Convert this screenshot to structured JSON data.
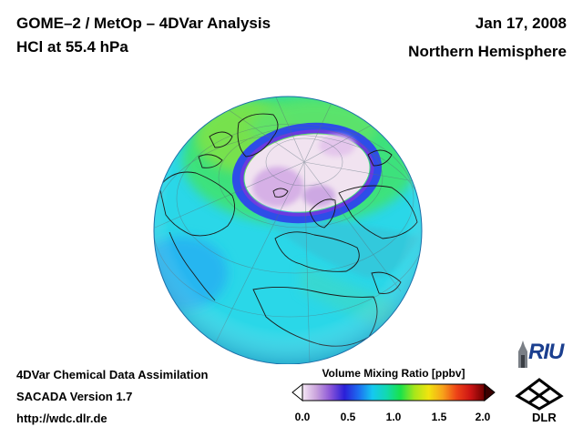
{
  "header": {
    "title": "GOME–2 / MetOp – 4DVar Analysis",
    "subtitle": "HCl at 55.4 hPa",
    "date": "Jan 17, 2008",
    "region": "Northern Hemisphere"
  },
  "footer": {
    "line1": "4DVar Chemical Data Assimilation",
    "line2": "SACADA Version 1.7",
    "line3": "http://wdc.dlr.de"
  },
  "colorbar": {
    "title": "Volume Mixing Ratio [ppbv]",
    "ticks": [
      "0.0",
      "0.5",
      "1.0",
      "1.5",
      "2.0"
    ],
    "range": [
      0.0,
      2.0
    ],
    "colors": [
      "#f6e8f6",
      "#c9a2dc",
      "#8a55d8",
      "#2a1fd8",
      "#1d6cf0",
      "#15c8f0",
      "#12d9b0",
      "#19e24a",
      "#a8e61a",
      "#f1e40f",
      "#f7a31a",
      "#ee4317",
      "#cc1414",
      "#6a0000"
    ]
  },
  "logos": {
    "riu": "RIU",
    "dlr": "DLR"
  },
  "map": {
    "projection": "orthographic",
    "hemisphere": "Northern Hemisphere",
    "background_color": "#2ad7e8",
    "vortex_color": "#f1e3f0",
    "vortex_edge_color": "#2d4de8"
  }
}
